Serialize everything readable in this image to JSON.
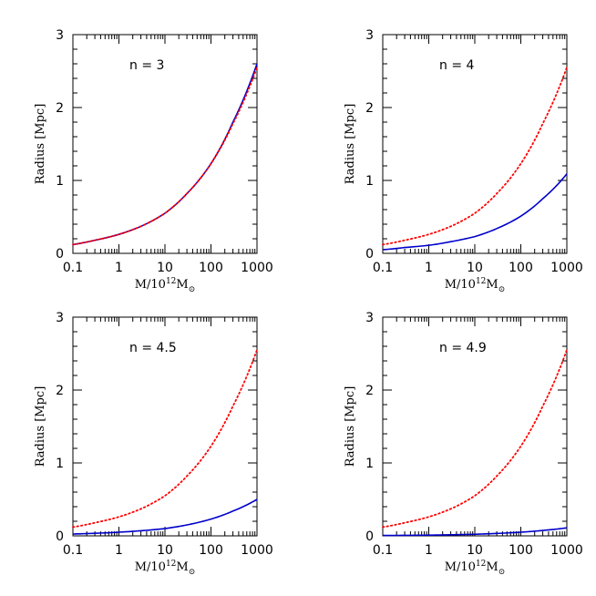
{
  "figure": {
    "panels_layout": "2x2"
  },
  "chart_data": [
    {
      "type": "line",
      "annotation": "n = 3",
      "xlabel": "M/10¹²M⊙",
      "xlabel_parts": {
        "m": "M/10",
        "exp": "12",
        "base": "M",
        "sub": "⊙"
      },
      "ylabel": "Radius [Mpc]",
      "x_scale": "log",
      "xlim": [
        0.1,
        1000
      ],
      "ylim": [
        0,
        3
      ],
      "x_ticks": [
        0.1,
        1,
        10,
        100,
        1000
      ],
      "x_tick_labels": [
        "0.1",
        "1",
        "10",
        "100",
        "1000"
      ],
      "y_ticks": [
        0,
        1,
        2,
        3
      ],
      "y_tick_labels": [
        "0",
        "1",
        "2",
        "3"
      ],
      "grid": false,
      "series": [
        {
          "style": "solid",
          "color": "#0000cc",
          "x": [
            0.1,
            0.3,
            1,
            3,
            10,
            30,
            100,
            300,
            1000
          ],
          "y": [
            0.12,
            0.18,
            0.26,
            0.37,
            0.55,
            0.82,
            1.23,
            1.8,
            2.6
          ]
        },
        {
          "style": "dotted",
          "color": "#ff0000",
          "x": [
            0.1,
            0.3,
            1,
            3,
            10,
            30,
            100,
            300,
            1000
          ],
          "y": [
            0.12,
            0.18,
            0.26,
            0.37,
            0.55,
            0.82,
            1.23,
            1.78,
            2.55
          ]
        }
      ]
    },
    {
      "type": "line",
      "annotation": "n = 4",
      "xlabel": "M/10¹²M⊙",
      "xlabel_parts": {
        "m": "M/10",
        "exp": "12",
        "base": "M",
        "sub": "⊙"
      },
      "ylabel": "Radius [Mpc]",
      "x_scale": "log",
      "xlim": [
        0.1,
        1000
      ],
      "ylim": [
        0,
        3
      ],
      "x_ticks": [
        0.1,
        1,
        10,
        100,
        1000
      ],
      "x_tick_labels": [
        "0.1",
        "1",
        "10",
        "100",
        "1000"
      ],
      "y_ticks": [
        0,
        1,
        2,
        3
      ],
      "y_tick_labels": [
        "0",
        "1",
        "2",
        "3"
      ],
      "grid": false,
      "series": [
        {
          "style": "solid",
          "color": "#0000cc",
          "x": [
            0.1,
            0.3,
            1,
            3,
            10,
            30,
            100,
            300,
            1000
          ],
          "y": [
            0.05,
            0.08,
            0.11,
            0.16,
            0.23,
            0.34,
            0.51,
            0.75,
            1.09
          ]
        },
        {
          "style": "dotted",
          "color": "#ff0000",
          "x": [
            0.1,
            0.3,
            1,
            3,
            10,
            30,
            100,
            300,
            1000
          ],
          "y": [
            0.12,
            0.18,
            0.26,
            0.37,
            0.55,
            0.82,
            1.23,
            1.78,
            2.55
          ]
        }
      ]
    },
    {
      "type": "line",
      "annotation": "n = 4.5",
      "xlabel": "M/10¹²M⊙",
      "xlabel_parts": {
        "m": "M/10",
        "exp": "12",
        "base": "M",
        "sub": "⊙"
      },
      "ylabel": "Radius [Mpc]",
      "x_scale": "log",
      "xlim": [
        0.1,
        1000
      ],
      "ylim": [
        0,
        3
      ],
      "x_ticks": [
        0.1,
        1,
        10,
        100,
        1000
      ],
      "x_tick_labels": [
        "0.1",
        "1",
        "10",
        "100",
        "1000"
      ],
      "y_ticks": [
        0,
        1,
        2,
        3
      ],
      "y_tick_labels": [
        "0",
        "1",
        "2",
        "3"
      ],
      "grid": false,
      "series": [
        {
          "style": "solid",
          "color": "#0000cc",
          "x": [
            0.1,
            0.3,
            1,
            3,
            10,
            30,
            100,
            300,
            1000
          ],
          "y": [
            0.025,
            0.035,
            0.05,
            0.07,
            0.1,
            0.15,
            0.23,
            0.34,
            0.5
          ]
        },
        {
          "style": "dotted",
          "color": "#ff0000",
          "x": [
            0.1,
            0.3,
            1,
            3,
            10,
            30,
            100,
            300,
            1000
          ],
          "y": [
            0.12,
            0.18,
            0.26,
            0.37,
            0.55,
            0.82,
            1.23,
            1.78,
            2.55
          ]
        }
      ]
    },
    {
      "type": "line",
      "annotation": "n = 4.9",
      "xlabel": "M/10¹²M⊙",
      "xlabel_parts": {
        "m": "M/10",
        "exp": "12",
        "base": "M",
        "sub": "⊙"
      },
      "ylabel": "Radius [Mpc]",
      "x_scale": "log",
      "xlim": [
        0.1,
        1000
      ],
      "ylim": [
        0,
        3
      ],
      "x_ticks": [
        0.1,
        1,
        10,
        100,
        1000
      ],
      "x_tick_labels": [
        "0.1",
        "1",
        "10",
        "100",
        "1000"
      ],
      "y_ticks": [
        0,
        1,
        2,
        3
      ],
      "y_tick_labels": [
        "0",
        "1",
        "2",
        "3"
      ],
      "grid": false,
      "series": [
        {
          "style": "solid",
          "color": "#0000cc",
          "x": [
            0.1,
            0.3,
            1,
            3,
            10,
            30,
            100,
            300,
            1000
          ],
          "y": [
            0.005,
            0.007,
            0.01,
            0.015,
            0.022,
            0.033,
            0.05,
            0.074,
            0.11
          ]
        },
        {
          "style": "dotted",
          "color": "#ff0000",
          "x": [
            0.1,
            0.3,
            1,
            3,
            10,
            30,
            100,
            300,
            1000
          ],
          "y": [
            0.12,
            0.18,
            0.26,
            0.37,
            0.55,
            0.82,
            1.23,
            1.78,
            2.55
          ]
        }
      ]
    }
  ]
}
